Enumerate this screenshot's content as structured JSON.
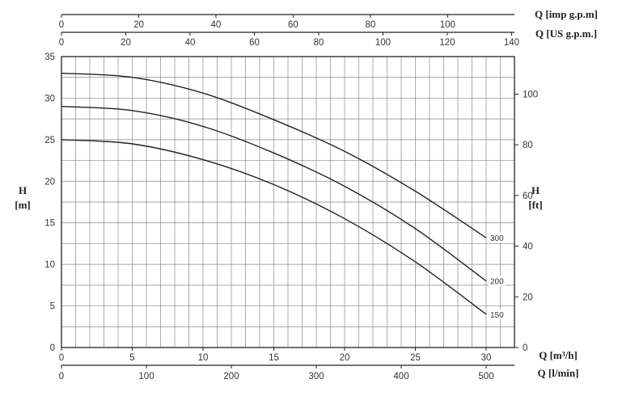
{
  "chart_data": {
    "type": "line",
    "title": "",
    "x_axes": {
      "bottom_primary": {
        "label": "Q [m³/h]",
        "range": [
          0,
          32
        ],
        "ticks": [
          0,
          5,
          10,
          15,
          20,
          25,
          30
        ]
      },
      "bottom_secondary": {
        "label": "Q [l/min]",
        "ticks": [
          0,
          100,
          200,
          300,
          400,
          500
        ]
      },
      "top_primary": {
        "label": "Q [US g.p.m.]",
        "ticks": [
          0,
          20,
          40,
          60,
          80,
          100,
          120,
          140
        ]
      },
      "top_secondary": {
        "label": "Q [imp g.p.m]",
        "ticks": [
          0,
          20,
          40,
          60,
          80,
          100
        ]
      }
    },
    "y_axes": {
      "left": {
        "label_line1": "H",
        "label_line2": "[m]",
        "range": [
          0,
          35
        ],
        "ticks": [
          0,
          5,
          10,
          15,
          20,
          25,
          30,
          35
        ]
      },
      "right": {
        "label_line1": "H",
        "label_line2": "[ft]",
        "ticks": [
          0,
          20,
          40,
          60,
          80,
          100
        ]
      }
    },
    "grid": true,
    "x": [
      0,
      5,
      10,
      15,
      20,
      25,
      30
    ],
    "series": [
      {
        "name": "300",
        "values": [
          33,
          32.5,
          30.6,
          27.4,
          23.6,
          18.8,
          13.2
        ]
      },
      {
        "name": "200",
        "values": [
          29,
          28.5,
          26.6,
          23.4,
          19.4,
          14.3,
          8
        ]
      },
      {
        "name": "150",
        "values": [
          25,
          24.5,
          22.6,
          19.6,
          15.5,
          10.3,
          4
        ]
      }
    ],
    "colors": {
      "line": "#222222",
      "grid": "#888888"
    }
  }
}
